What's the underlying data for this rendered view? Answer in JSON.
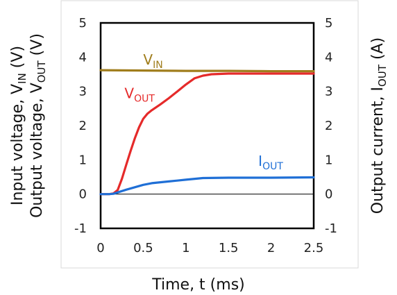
{
  "chart_data": {
    "type": "line",
    "xlabel": "Time, t (ms)",
    "ylabel_left": [
      "Input voltage, V",
      "IN",
      " (V)"
    ],
    "ylabel_left2": [
      "Output voltage, V",
      "OUT",
      " (V)"
    ],
    "ylabel_right": [
      "Output current, I",
      "OUT",
      " (A)"
    ],
    "xlim": [
      0,
      2.5
    ],
    "ylim_left": [
      -1,
      5
    ],
    "ylim_right": [
      -1,
      5
    ],
    "xticks": [
      "0",
      "0.5",
      "1",
      "1.5",
      "2",
      "2.5"
    ],
    "yticks_left": [
      "-1",
      "0",
      "1",
      "2",
      "3",
      "4",
      "5"
    ],
    "yticks_right": [
      "-1",
      "0",
      "1",
      "2",
      "3",
      "4",
      "5"
    ],
    "series": [
      {
        "name": "VIN",
        "label_main": "V",
        "label_sub": "IN",
        "color": "#a07d1c",
        "x": [
          0,
          0.5,
          1.0,
          1.5,
          2.0,
          2.5
        ],
        "y": [
          3.62,
          3.61,
          3.6,
          3.6,
          3.59,
          3.59
        ]
      },
      {
        "name": "VOUT",
        "label_main": "V",
        "label_sub": "OUT",
        "color": "#e52a2a",
        "x": [
          0,
          0.1,
          0.15,
          0.2,
          0.25,
          0.3,
          0.35,
          0.4,
          0.45,
          0.5,
          0.55,
          0.6,
          0.7,
          0.8,
          0.9,
          1.0,
          1.1,
          1.2,
          1.3,
          1.5,
          1.8,
          2.0,
          2.5
        ],
        "y": [
          0,
          0,
          0.02,
          0.12,
          0.45,
          0.85,
          1.25,
          1.62,
          1.95,
          2.2,
          2.35,
          2.45,
          2.62,
          2.8,
          3.0,
          3.2,
          3.38,
          3.46,
          3.5,
          3.52,
          3.52,
          3.52,
          3.52
        ]
      },
      {
        "name": "IOUT",
        "label_main": "I",
        "label_sub": "OUT",
        "color": "#1f6fd6",
        "x": [
          0,
          0.1,
          0.15,
          0.2,
          0.3,
          0.4,
          0.5,
          0.6,
          0.8,
          1.0,
          1.2,
          1.5,
          2.0,
          2.5
        ],
        "y": [
          0,
          0,
          0.01,
          0.05,
          0.13,
          0.2,
          0.27,
          0.32,
          0.37,
          0.42,
          0.47,
          0.48,
          0.48,
          0.49
        ]
      }
    ],
    "grid": false
  }
}
